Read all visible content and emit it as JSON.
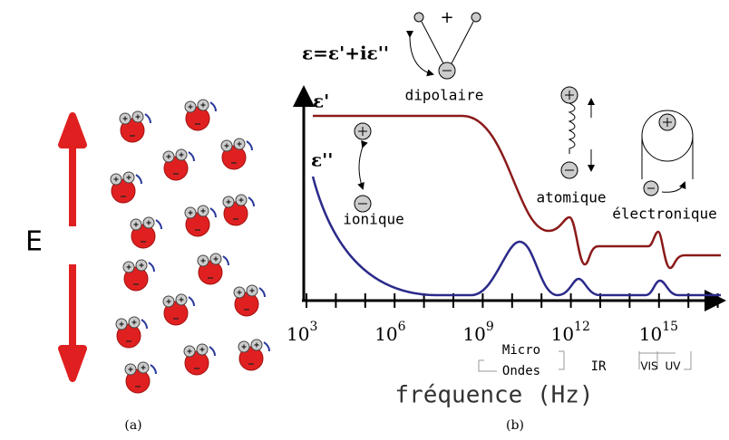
{
  "panel_a": {
    "field_label": "E",
    "caption": "(a)"
  },
  "panel_b": {
    "formula": "ε=ε'+iε''",
    "curves": [
      "ε'",
      "ε''"
    ],
    "mechanisms": [
      "dipolaire",
      "ionique",
      "atomique",
      "électronique"
    ],
    "plus_sign": "+",
    "ticks": [
      {
        "base": "10",
        "exp": "3"
      },
      {
        "base": "10",
        "exp": "6"
      },
      {
        "base": "10",
        "exp": "9"
      },
      {
        "base": "10",
        "exp": "12"
      },
      {
        "base": "10",
        "exp": "15"
      }
    ],
    "bands": [
      "Micro",
      "Ondes",
      "IR",
      "VIS",
      "UV"
    ],
    "axis_label": "fréquence (Hz)",
    "caption": "(b)"
  }
}
